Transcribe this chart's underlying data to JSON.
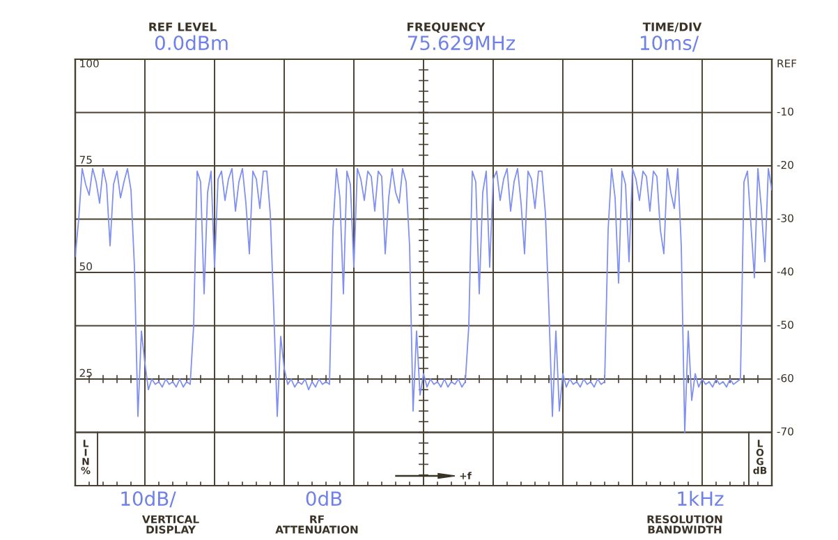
{
  "chart_data": {
    "type": "line",
    "categories": [
      null,
      null,
      null,
      null,
      null,
      null,
      null,
      null,
      null,
      null,
      null,
      null,
      null,
      null,
      null,
      null,
      null,
      null,
      null,
      null,
      null,
      null,
      null,
      null,
      null,
      null,
      null,
      null,
      null,
      null,
      null,
      null,
      null,
      null,
      null,
      null,
      null,
      null,
      null,
      null,
      null,
      null,
      null,
      null,
      null,
      null,
      null,
      null,
      null,
      null,
      null,
      null,
      null,
      null,
      null,
      null,
      null,
      null,
      null,
      null,
      null,
      null,
      null,
      null,
      null,
      null,
      null,
      null,
      null,
      null,
      null,
      null,
      null,
      null,
      null,
      null,
      null,
      null,
      null,
      null,
      null,
      null,
      null,
      null,
      null,
      null,
      null,
      null,
      null,
      null,
      null,
      null,
      null,
      null,
      null,
      null,
      null,
      null,
      null,
      null,
      null,
      null,
      null,
      null,
      null,
      null,
      null,
      null,
      null,
      null,
      null,
      null,
      null,
      null,
      null,
      null,
      null,
      null,
      null,
      null,
      null,
      null,
      null,
      null,
      null,
      null,
      null,
      null,
      null,
      null,
      null,
      null,
      null,
      null,
      null,
      null,
      null,
      null,
      null,
      null,
      null,
      null,
      null,
      null,
      null,
      null,
      null,
      null,
      null,
      null,
      null,
      null,
      null,
      null,
      null,
      null,
      null,
      null,
      null,
      null,
      null,
      null,
      null,
      null,
      null,
      null,
      null,
      null,
      null,
      null,
      null,
      null,
      null,
      null,
      null,
      null,
      null,
      null,
      null,
      null,
      null,
      null,
      null,
      null,
      null,
      null,
      null,
      null,
      null,
      null,
      null,
      null,
      null,
      null,
      null,
      null,
      null,
      null,
      null,
      null,
      null
    ],
    "series": [
      {
        "color": "#8090f0",
        "axis": "y2",
        "values": [
          -37,
          -30,
          -20.5,
          -23.5,
          -25.5,
          -20.5,
          -23,
          -27,
          -20.5,
          -23.5,
          -35,
          -23.5,
          -21,
          -26,
          -23,
          -20.5,
          -24.5,
          -39,
          -67,
          -51,
          -57,
          -62,
          -60,
          -61,
          -60.5,
          -61.5,
          -60,
          -61,
          -60.5,
          -61.5,
          -60,
          -61.5,
          -60.5,
          -61,
          -50,
          -21,
          -23,
          -44,
          -25,
          -21,
          -39,
          -22.5,
          -21,
          -26.5,
          -22.5,
          -20.5,
          -28.5,
          -23,
          -20.5,
          -27,
          -36.5,
          -21,
          -22.5,
          -28,
          -21,
          -21,
          -29,
          -47,
          -67,
          -52,
          -58,
          -61,
          -60,
          -61.5,
          -60.5,
          -61,
          -60,
          -62,
          -60.5,
          -61.5,
          -60,
          -61,
          -60.5,
          -61,
          -32,
          -20.5,
          -26,
          -44,
          -21,
          -23.5,
          -39,
          -20.5,
          -22.5,
          -26.5,
          -21,
          -22,
          -28.5,
          -21,
          -22,
          -36.5,
          -26,
          -20.5,
          -25,
          -27,
          -20.5,
          -23,
          -35,
          -66,
          -51,
          -63,
          -59,
          -61.5,
          -60,
          -61,
          -60.5,
          -61.5,
          -60,
          -61.5,
          -60.5,
          -61,
          -60,
          -61.5,
          -60.5,
          -50,
          -21,
          -23,
          -44,
          -25,
          -21,
          -39,
          -22.5,
          -21,
          -26.5,
          -22.5,
          -20.5,
          -28.5,
          -23,
          -20.5,
          -27,
          -36.5,
          -21,
          -22.5,
          -28,
          -21,
          -21,
          -29,
          -47,
          -67,
          -51,
          -66,
          -59,
          -61.5,
          -60,
          -61,
          -60.5,
          -61.5,
          -60,
          -61,
          -60.5,
          -61.5,
          -60,
          -61,
          -60.5,
          -32,
          -20.5,
          -26,
          -42,
          -21,
          -23.5,
          -38,
          -20.5,
          -22.5,
          -26.5,
          -21,
          -22,
          -28.5,
          -21,
          -22,
          -32,
          -36.5,
          -20.5,
          -25,
          -28,
          -20.5,
          -35,
          -70,
          -51,
          -64,
          -59,
          -61.5,
          -60,
          -61,
          -60.5,
          -61.5,
          -60,
          -61,
          -60.5,
          -61.5,
          -60,
          -61,
          -60.5,
          -60,
          -23,
          -21,
          -31,
          -41,
          -20.5,
          -28,
          -38,
          -20.5,
          -24.5
        ]
      }
    ],
    "ylim": [
      0,
      100
    ],
    "yticks": [
      25,
      50,
      75,
      100
    ],
    "y2lim": [
      -80,
      0
    ],
    "y2ticks": [
      {
        "value": 0,
        "label": "REF"
      },
      -10,
      -20,
      -30,
      -40,
      -50,
      -60,
      -70
    ],
    "tick_labels": "y",
    "grid": true,
    "marker": "none",
    "line_style": "solid",
    "annotations": [
      "REF LEVEL",
      "0.0dBm",
      "FREQUENCY",
      "75.629MHz",
      "TIME/DIV",
      "10ms/",
      "10dB/",
      "VERTICAL DISPLAY",
      "0dB",
      "RF ATTENUATION",
      "1kHz",
      "RESOLUTION BANDWIDTH",
      "LIN%",
      "LOG dB",
      "+f"
    ]
  }
}
